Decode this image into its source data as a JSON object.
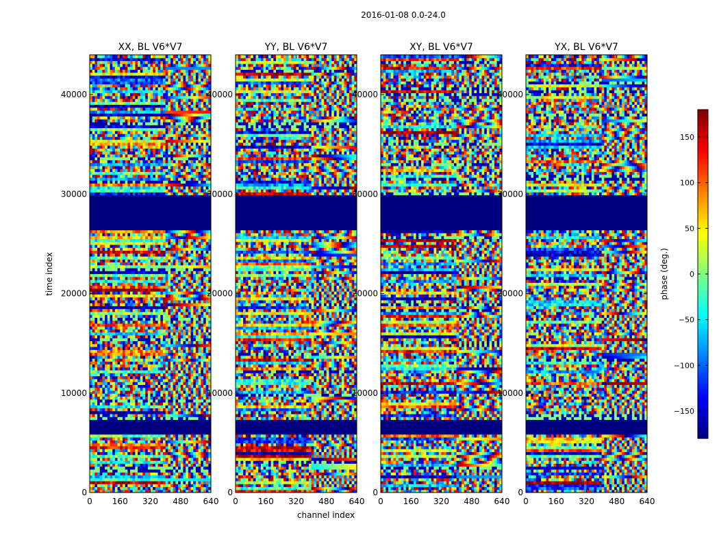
{
  "chart_data": {
    "type": "heatmap",
    "suptitle": "2016-01-08 0.0-24.0",
    "xlabel": "channel index",
    "ylabel": "time index",
    "xlim": [
      0,
      640
    ],
    "ylim": [
      0,
      44000
    ],
    "xticks": [
      0,
      160,
      320,
      480,
      640
    ],
    "yticks": [
      0,
      10000,
      20000,
      30000,
      40000
    ],
    "panels": [
      {
        "title": "XX, BL V6*V7",
        "key": "XX"
      },
      {
        "title": "YY, BL V6*V7",
        "key": "YY"
      },
      {
        "title": "XY, BL V6*V7",
        "key": "XY"
      },
      {
        "title": "YX, BL V6*V7",
        "key": "YX"
      }
    ],
    "flagged_time_ranges": [
      [
        26300,
        30000
      ],
      [
        6000,
        7200
      ]
    ],
    "flag_value": -180,
    "colorbar": {
      "label": "phase (deg.)",
      "range": [
        -180,
        180
      ],
      "ticks": [
        -150,
        -100,
        -50,
        0,
        50,
        100,
        150
      ],
      "colormap": "jet"
    }
  },
  "colors": {
    "flagged": "#00007f",
    "axis": "#000000",
    "background": "#ffffff"
  }
}
